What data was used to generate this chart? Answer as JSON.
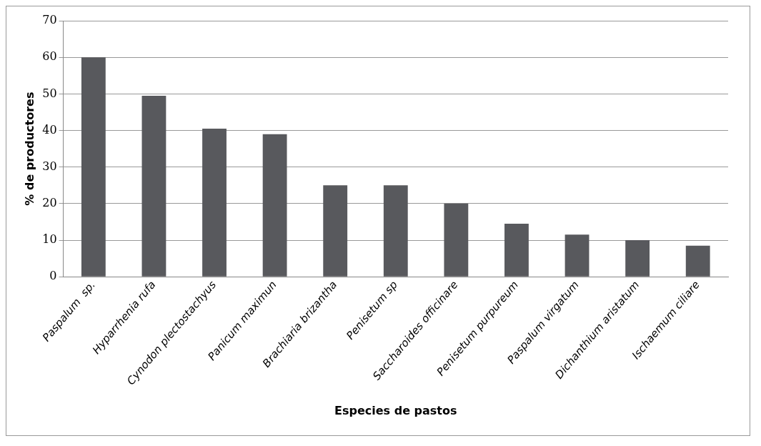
{
  "chart_data": {
    "type": "bar",
    "xlabel": "Especies de pastos",
    "ylabel": "% de productores",
    "categories": [
      "Paspalum  sp.",
      "Hyparrhenia rufa",
      "Cynodon plectostachyus",
      "Panicum maximun",
      "Brachiaria brizantha",
      "Penisetum sp",
      "Saccharoides officinare",
      "Penisetum purpureum",
      "Paspalum virgatum",
      "Dichanthium aristatum",
      "Ischaemum ciliare"
    ],
    "values": [
      60,
      49.5,
      40.5,
      39,
      25,
      25,
      20,
      14.5,
      11.5,
      10,
      8.5
    ],
    "color": "#58595d",
    "ylim": [
      0,
      70
    ],
    "yticks": [
      0,
      10,
      20,
      30,
      40,
      50,
      60,
      70
    ],
    "grid": "y",
    "legend": false
  }
}
